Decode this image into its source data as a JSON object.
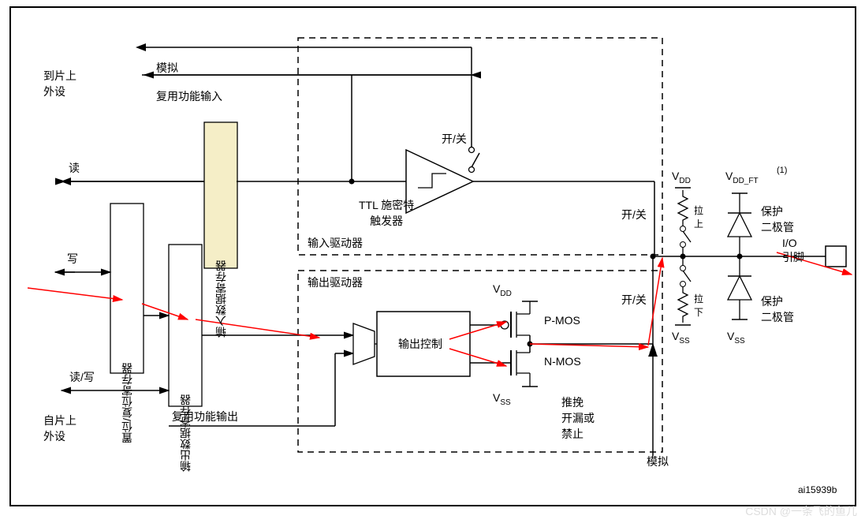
{
  "labels": {
    "to_onchip": "到片上\n外设",
    "analog": "模拟",
    "af_input": "复用功能输入",
    "onoff_top": "开/关",
    "read": "读",
    "ttl": "TTL 施密特\n触发器",
    "input_reg": "输入数据寄存器",
    "input_drv": "输入驱动器",
    "write": "写",
    "set_reset": "置位/复位寄存器",
    "output_reg": "输出数据寄存器",
    "output_drv": "输出驱动器",
    "read_write": "读/写",
    "from_onchip": "自片上\n外设",
    "af_output": "复用功能输出",
    "out_ctrl": "输出控制",
    "pmos": "P-MOS",
    "nmos": "N-MOS",
    "vdd": "V",
    "vss": "V",
    "vdd_sub": "DD",
    "vss_sub": "SS",
    "vdd_ft": "V",
    "vdd_ft_sub": "DD_FT",
    "ft_sup": "(1)",
    "onoff_r1": "开/关",
    "onoff_r2": "开/关",
    "pullup": "拉\n上",
    "pulldown": "拉\n下",
    "prot_diode": "保护\n二极管",
    "io_pin": "I/O\n引脚",
    "pp_od": "推挽\n开漏或\n禁止",
    "analog2": "模拟",
    "ref": "ai15939b",
    "watermark": "CSDN @一条飞的鱼儿"
  },
  "style": {
    "stroke": "#000",
    "stroke_w": 1.5,
    "dash": "8,6",
    "red": "#ff0000",
    "yellow": "#f5eec7",
    "gray": "#bbb"
  }
}
